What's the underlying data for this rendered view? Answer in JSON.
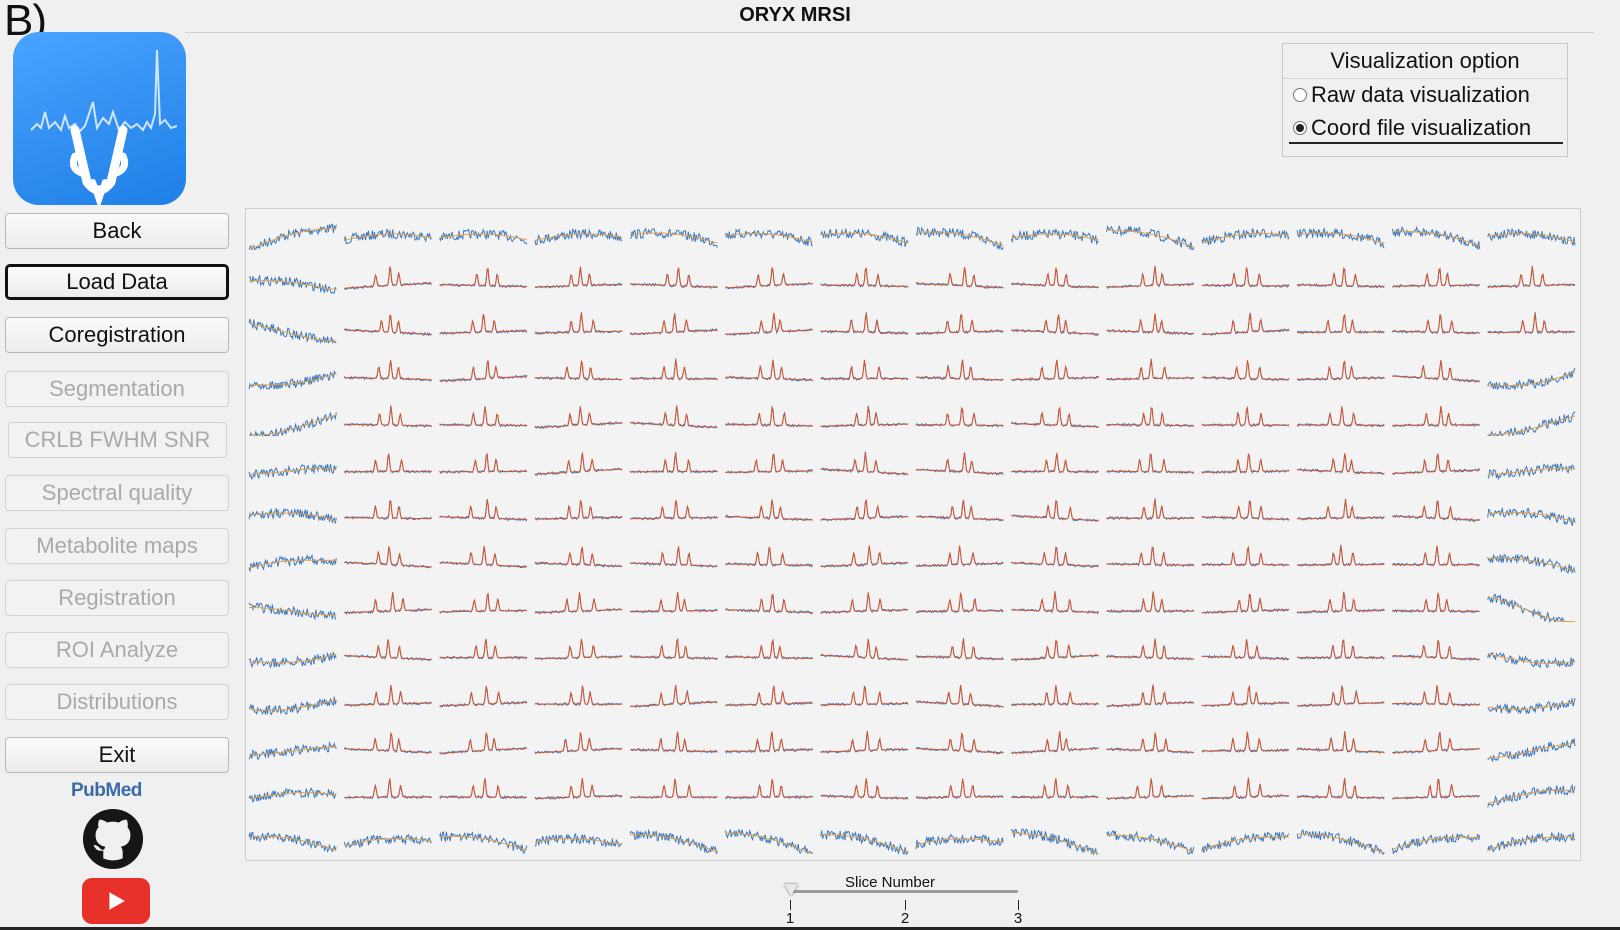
{
  "figure_label": "B)",
  "app_title": "ORYX MRSI",
  "sidebar": {
    "buttons": [
      {
        "label": "Back",
        "state": "enabled"
      },
      {
        "label": "Load Data",
        "state": "focused"
      },
      {
        "label": "Coregistration",
        "state": "enabled"
      },
      {
        "label": "Segmentation",
        "state": "disabled"
      },
      {
        "label": "CRLB FWHM SNR",
        "state": "disabled"
      },
      {
        "label": "Spectral quality",
        "state": "disabled"
      },
      {
        "label": "Metabolite maps",
        "state": "disabled"
      },
      {
        "label": "Registration",
        "state": "disabled"
      },
      {
        "label": "ROI Analyze",
        "state": "disabled"
      },
      {
        "label": "Distributions",
        "state": "disabled"
      },
      {
        "label": "Exit",
        "state": "enabled"
      }
    ],
    "links": {
      "pubmed": "PubMed",
      "github_icon": "github-icon",
      "youtube_icon": "youtube-icon"
    }
  },
  "visualization": {
    "title": "Visualization option",
    "options": [
      {
        "label": "Raw data visualization",
        "selected": false
      },
      {
        "label": "Coord file visualization",
        "selected": true
      }
    ]
  },
  "spectra_grid": {
    "rows": 14,
    "cols": 14,
    "raw_color": "#3a78c3",
    "fit_color": "#e8a040",
    "peak_color": "#d9542a"
  },
  "slice": {
    "label": "Slice Number",
    "min": 1,
    "max": 3,
    "value": 1,
    "ticks": [
      "1",
      "2",
      "3"
    ]
  },
  "colors": {
    "logo_blue": "#2d8cf0",
    "youtube_red": "#e8302a",
    "pubmed_blue": "#3a6ba8"
  }
}
